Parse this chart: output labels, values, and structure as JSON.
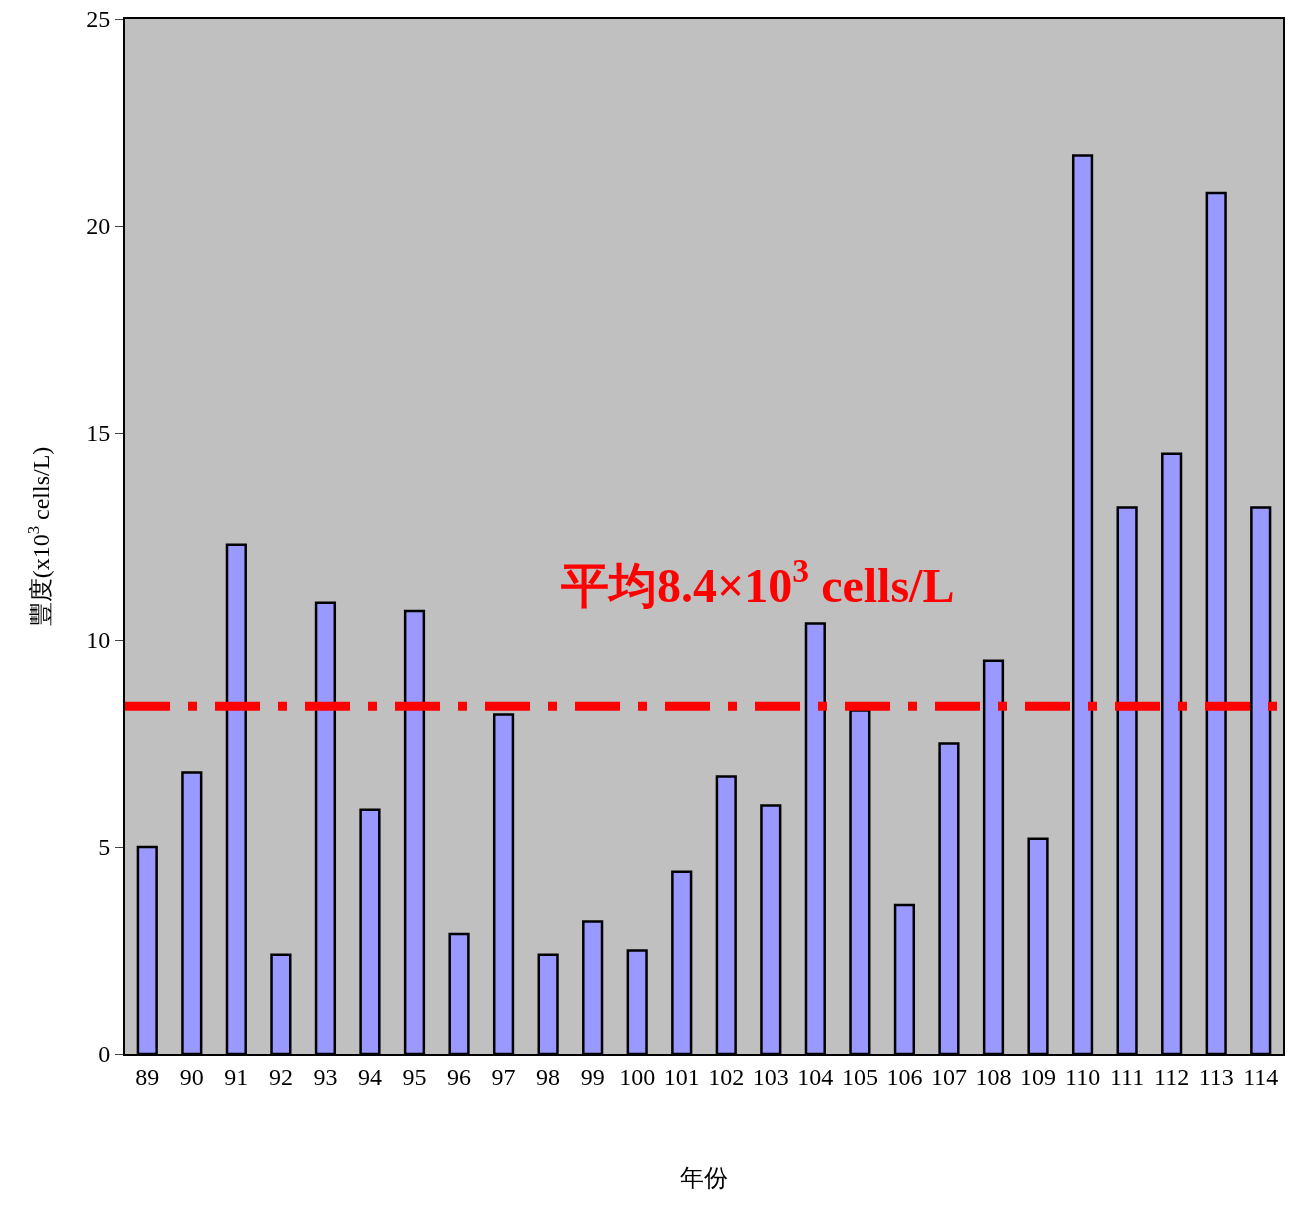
{
  "chart_data": {
    "type": "bar",
    "xlabel": "年份",
    "ylabel": "豐度(x10$^{3}$ cells/L)",
    "categories": [
      "89",
      "90",
      "91",
      "92",
      "93",
      "94",
      "95",
      "96",
      "97",
      "98",
      "99",
      "100",
      "101",
      "102",
      "103",
      "104",
      "105",
      "106",
      "107",
      "108",
      "109",
      "110",
      "111",
      "112",
      "113",
      "114"
    ],
    "values": [
      5.0,
      6.8,
      12.3,
      2.4,
      10.9,
      5.9,
      10.7,
      2.9,
      8.2,
      2.4,
      3.2,
      2.5,
      4.4,
      6.7,
      6.0,
      10.4,
      8.3,
      3.6,
      7.5,
      9.5,
      5.2,
      21.7,
      13.2,
      14.5,
      20.8,
      13.2
    ],
    "color": "#9999ff",
    "ylim": [
      0,
      25
    ],
    "yticks": [
      0,
      5,
      10,
      15,
      20,
      25
    ],
    "ref_lines": [
      {
        "axis": "y",
        "value": 8.4,
        "label": "平均8.4×10$^{3}$ cells/L",
        "color": "#ff0000",
        "line_style": "dashdot"
      }
    ],
    "grid": false
  }
}
